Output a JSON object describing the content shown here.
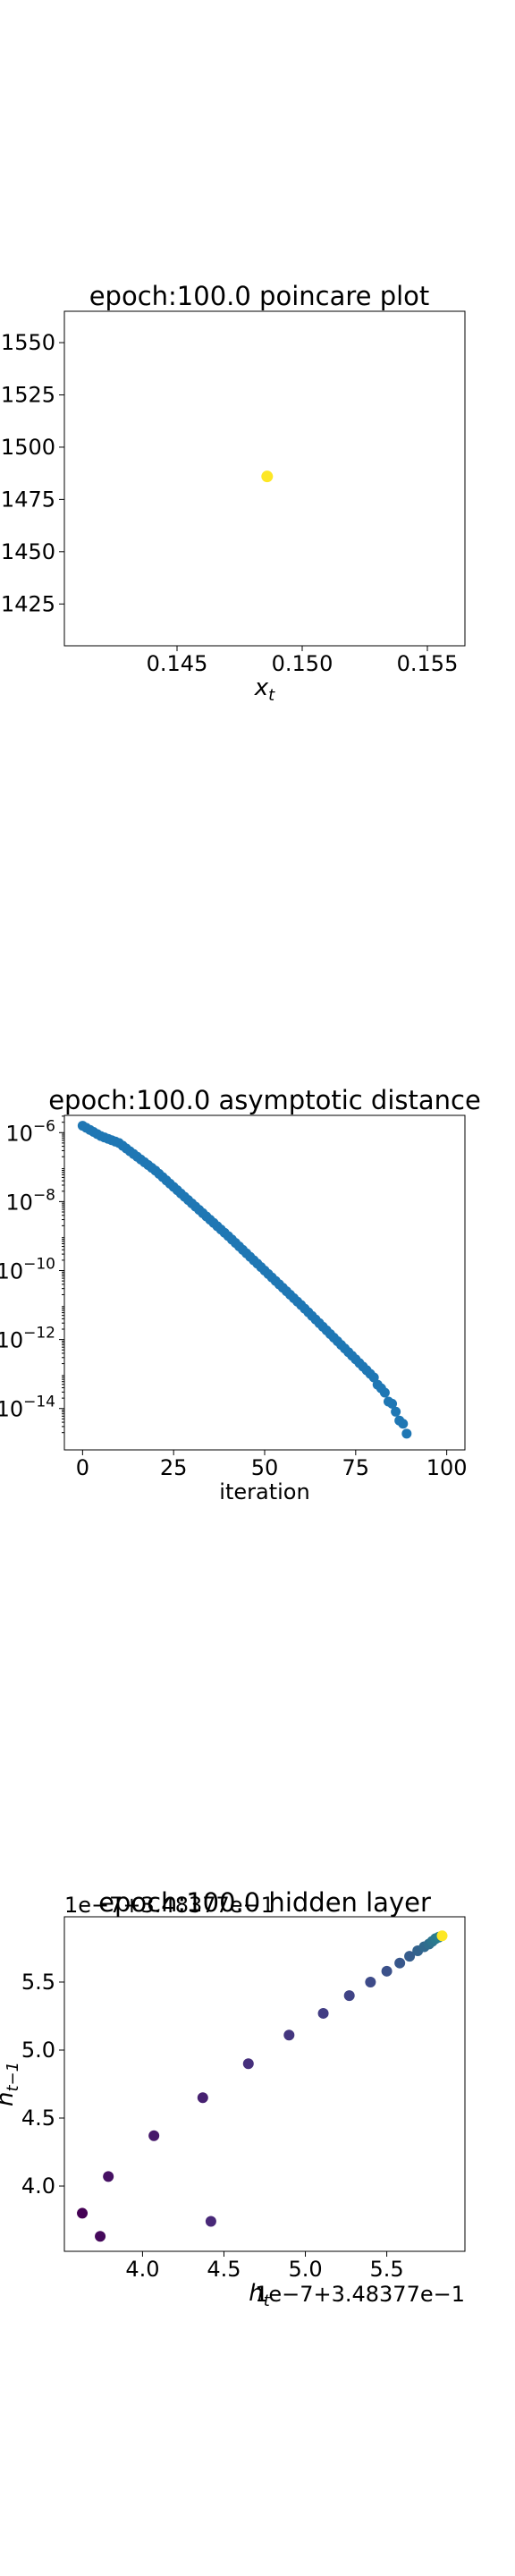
{
  "chart_data": [
    {
      "type": "scatter",
      "title": "epoch:100.0 poincare plot",
      "xlabel": "x_t",
      "ylabel": "",
      "xlim": [
        0.1405,
        0.1565
      ],
      "ylim": [
        0.1405,
        0.1565
      ],
      "x_ticks": [
        0.145,
        0.15,
        0.155
      ],
      "y_ticks": [
        0.1425,
        0.145,
        0.1475,
        0.15,
        0.1525,
        0.155
      ],
      "x_tick_labels": [
        "0.145",
        "0.150",
        "0.155"
      ],
      "y_tick_labels": [
        "1425",
        "1450",
        "1475",
        "1500",
        "1525",
        "1550"
      ],
      "points": [
        {
          "x": 0.1486,
          "y": 0.1486,
          "color": "#fde725"
        }
      ]
    },
    {
      "type": "scatter",
      "title": "epoch:100.0 asymptotic distance",
      "xlabel": "iteration",
      "ylabel": "",
      "xlim": [
        -5,
        105
      ],
      "ylim_log10": [
        -15.2,
        -5.5
      ],
      "y_scale": "log",
      "x_ticks": [
        0,
        25,
        50,
        75,
        100
      ],
      "x_tick_labels": [
        "0",
        "25",
        "50",
        "75",
        "100"
      ],
      "y_tick_exponents": [
        -6,
        -8,
        -10,
        -12,
        -14
      ],
      "y_tick_prefix": "10",
      "color": "#1f77b4",
      "series_endpoints": [
        {
          "x": 0,
          "log10_y": -5.8
        },
        {
          "x": 5,
          "log10_y": -6.1
        },
        {
          "x": 10,
          "log10_y": -6.3
        },
        {
          "x": 20,
          "log10_y": -7.1
        },
        {
          "x": 40,
          "log10_y": -9.0
        },
        {
          "x": 60,
          "log10_y": -11.0
        },
        {
          "x": 80,
          "log10_y": -13.1
        },
        {
          "x": 85,
          "log10_y": -13.9
        },
        {
          "x": 88,
          "log10_y": -14.5
        },
        {
          "x": 89,
          "log10_y": -14.7
        }
      ]
    },
    {
      "type": "scatter",
      "title": "epoch:100.0 hidden layer",
      "xlabel": "h_t",
      "ylabel": "h_{t-1}",
      "x_offset_text": "1e−7+3.48377e−1",
      "y_offset_text": "1e−7+3.48377e−1",
      "xlim": [
        3.52,
        5.98
      ],
      "ylim": [
        3.52,
        5.98
      ],
      "x_ticks": [
        4.0,
        4.5,
        5.0,
        5.5
      ],
      "y_ticks": [
        4.0,
        4.5,
        5.0,
        5.5
      ],
      "x_tick_labels": [
        "4.0",
        "4.5",
        "5.0",
        "5.5"
      ],
      "y_tick_labels": [
        "4.0",
        "4.5",
        "5.0",
        "5.5"
      ],
      "points": [
        {
          "x": 3.63,
          "y": 3.8
        },
        {
          "x": 3.74,
          "y": 3.63
        },
        {
          "x": 3.79,
          "y": 4.07
        },
        {
          "x": 4.07,
          "y": 4.37
        },
        {
          "x": 4.37,
          "y": 4.65
        },
        {
          "x": 4.42,
          "y": 3.74
        },
        {
          "x": 4.65,
          "y": 4.9
        },
        {
          "x": 4.9,
          "y": 5.11
        },
        {
          "x": 5.11,
          "y": 5.27
        },
        {
          "x": 5.27,
          "y": 5.4
        },
        {
          "x": 5.4,
          "y": 5.5
        },
        {
          "x": 5.5,
          "y": 5.58
        },
        {
          "x": 5.58,
          "y": 5.64
        },
        {
          "x": 5.64,
          "y": 5.69
        },
        {
          "x": 5.69,
          "y": 5.73
        },
        {
          "x": 5.73,
          "y": 5.76
        },
        {
          "x": 5.76,
          "y": 5.78
        },
        {
          "x": 5.78,
          "y": 5.8
        },
        {
          "x": 5.8,
          "y": 5.82
        },
        {
          "x": 5.82,
          "y": 5.83
        },
        {
          "x": 5.84,
          "y": 5.84
        }
      ],
      "colormap": "viridis"
    }
  ]
}
